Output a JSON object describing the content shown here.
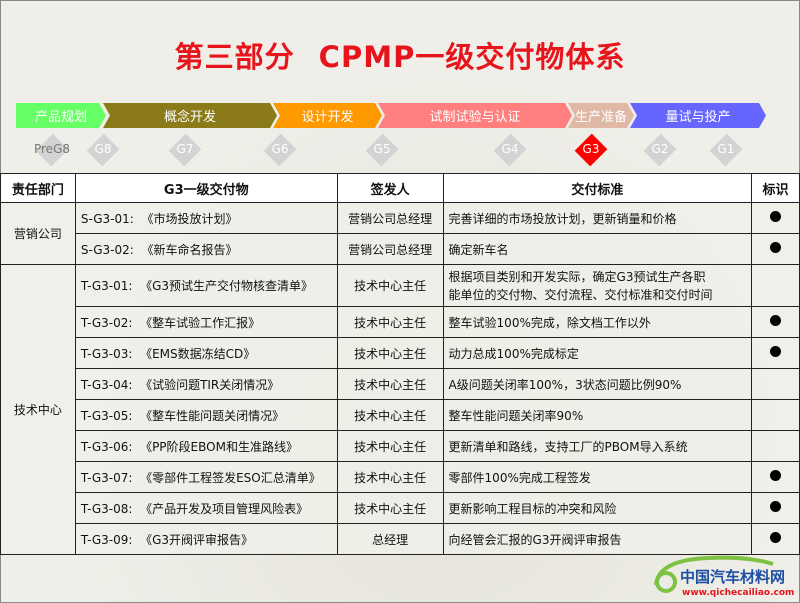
{
  "title": {
    "part": "第三部分",
    "name": "CPMP一级交付物体系"
  },
  "phases": [
    {
      "label": "产品规划",
      "color": "#66ff66"
    },
    {
      "label": "概念开发",
      "color": "#8a7a18"
    },
    {
      "label": "设计开发",
      "color": "#ff9900"
    },
    {
      "label": "试制试验与认证",
      "color": "#ff7f7f"
    },
    {
      "label": "生产准备",
      "color": "#e0b8a6"
    },
    {
      "label": "量试与投产",
      "color": "#6666ff"
    }
  ],
  "gates": [
    "PreG8",
    "G8",
    "G7",
    "G6",
    "G5",
    "G4",
    "G3",
    "G2",
    "G1"
  ],
  "current_gate": "G3",
  "table": {
    "headers": [
      "责任部门",
      "G3一级交付物",
      "签发人",
      "交付标准",
      "标识"
    ],
    "groups": [
      {
        "dept": "营销公司",
        "rows": [
          {
            "code": "S-G3-01:",
            "doc": "《市场投放计划》",
            "signer": "营销公司总经理",
            "standard": "完善详细的市场投放计划，更新销量和价格",
            "mark": true
          },
          {
            "code": "S-G3-02:",
            "doc": "《新车命名报告》",
            "signer": "营销公司总经理",
            "standard": "确定新车名",
            "mark": true
          }
        ]
      },
      {
        "dept": "技术中心",
        "rows": [
          {
            "code": "T-G3-01:",
            "doc": "《G3预试生产交付物核查清单》",
            "signer": "技术中心主任",
            "standard": "根据项目类别和开发实际，确定G3预试生产各职",
            "standard2": "能单位的交付物、交付流程、交付标准和交付时间",
            "mark": false
          },
          {
            "code": "T-G3-02:",
            "doc": "《整车试验工作汇报》",
            "signer": "技术中心主任",
            "standard": "整车试验100%完成，除文档工作以外",
            "mark": true
          },
          {
            "code": "T-G3-03:",
            "doc": "《EMS数据冻结CD》",
            "signer": "技术中心主任",
            "standard": "动力总成100%完成标定",
            "mark": true
          },
          {
            "code": "T-G3-04:",
            "doc": "《试验问题TIR关闭情况》",
            "signer": "技术中心主任",
            "standard": "A级问题关闭率100%，3状态问题比例90%",
            "mark": false
          },
          {
            "code": "T-G3-05:",
            "doc": "《整车性能问题关闭情况》",
            "signer": "技术中心主任",
            "standard": "整车性能问题关闭率90%",
            "mark": false
          },
          {
            "code": "T-G3-06:",
            "doc": "《PP阶段EBOM和生准路线》",
            "signer": "技术中心主任",
            "standard": "更新清单和路线，支持工厂的PBOM导入系统",
            "mark": false
          },
          {
            "code": "T-G3-07:",
            "doc": "《零部件工程签发ESO汇总清单》",
            "signer": "技术中心主任",
            "standard": "零部件100%完成工程签发",
            "mark": true
          },
          {
            "code": "T-G3-08:",
            "doc": "《产品开发及项目管理风险表》",
            "signer": "技术中心主任",
            "standard": "更新影响工程目标的冲突和风险",
            "mark": true
          },
          {
            "code": "T-G3-09:",
            "doc": "《G3开阀评审报告》",
            "signer": "总经理",
            "standard": "向经管会汇报的G3开阀评审报告",
            "mark": true
          }
        ]
      }
    ]
  },
  "logo": {
    "cn": "中国汽车材料网",
    "url": "www.qichecailiao.com"
  }
}
